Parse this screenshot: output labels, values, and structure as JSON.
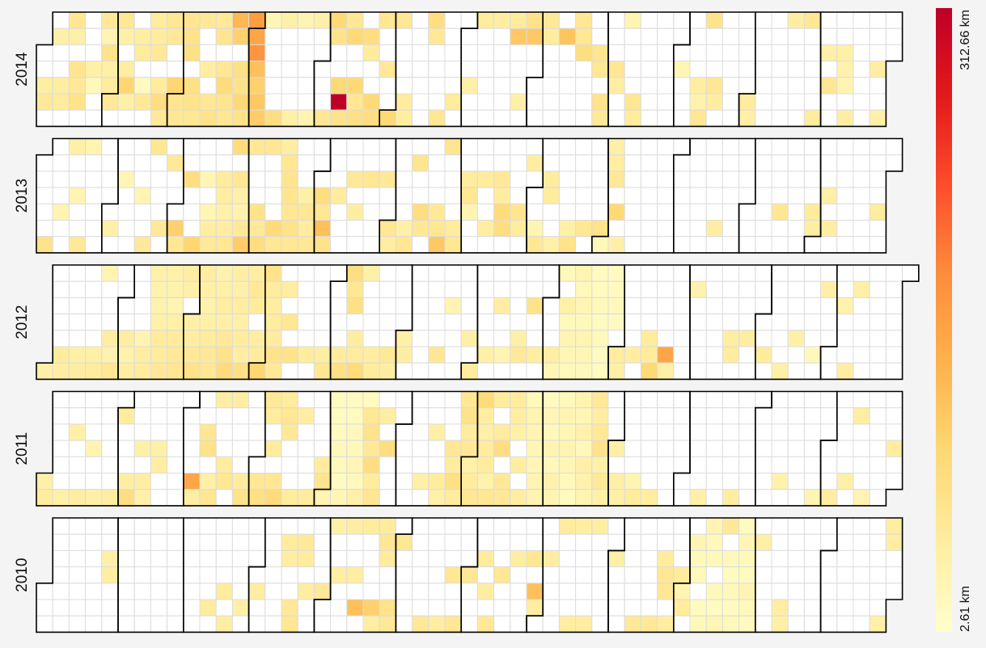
{
  "chart_data": {
    "type": "heatmap",
    "subtype": "calendar",
    "week_start": "monday",
    "unit": "km",
    "color_scale": {
      "min": 2.61,
      "max": 312.66,
      "min_label": "2.61 km",
      "max_label": "312.66 km",
      "colors": [
        "#ffffcc",
        "#ffeda0",
        "#fed976",
        "#feb24c",
        "#fd8d3c",
        "#fc4e2a",
        "#e31a1c",
        "#bd0026"
      ]
    },
    "empty_cell_color": "#ffffff",
    "grid_line_color": "#dcdcdc",
    "month_border_color": "#000000",
    "years": [
      {
        "year": 2014,
        "days": {
          "2014-01-07": 40,
          "2014-01-13": 60,
          "2014-01-14": 40,
          "2014-01-18": 70,
          "2014-01-23": 40,
          "2014-01-27": 55,
          "2014-01-28": 30,
          "2014-01-29": 70,
          "2014-02-01": 55,
          "2014-02-03": 60,
          "2014-02-04": 40,
          "2014-02-06": 45,
          "2014-02-07": 95,
          "2014-02-08": 40,
          "2014-01-03": 45,
          "2014-01-04": 55,
          "2014-01-11": 50,
          "2014-01-10": 45,
          "2014-01-16": 65,
          "2014-01-17": 55,
          "2014-01-24": 20,
          "2014-01-30": 40,
          "2014-01-31": 50,
          "2014-02-11": 45,
          "2014-02-12": 50,
          "2014-02-14": 15,
          "2014-02-15": 55,
          "2014-02-17": 50,
          "2014-02-18": 50,
          "2014-02-19": 55,
          "2014-02-21": 50,
          "2014-02-22": 80,
          "2014-02-23": 55,
          "2014-02-24": 60,
          "2014-02-25": 55,
          "2014-02-28": 95,
          "2014-03-01": 65,
          "2014-03-02": 60,
          "2014-03-03": 65,
          "2014-03-04": 70,
          "2014-03-05": 75,
          "2014-03-07": 75,
          "2014-03-08": 70,
          "2014-03-09": 60,
          "2014-03-10": 55,
          "2014-03-13": 45,
          "2014-03-15": 60,
          "2014-03-16": 70,
          "2014-03-17": 55,
          "2014-03-18": 65,
          "2014-03-20": 60,
          "2014-03-21": 85,
          "2014-03-22": 65,
          "2014-03-23": 60,
          "2014-03-24": 130,
          "2014-03-25": 100,
          "2014-03-27": 75,
          "2014-03-28": 70,
          "2014-03-29": 90,
          "2014-03-30": 70,
          "2014-03-31": 160,
          "2014-04-01": 150,
          "2014-04-02": 170,
          "2014-04-03": 120,
          "2014-04-04": 100,
          "2014-04-05": 110,
          "2014-04-06": 105,
          "2014-04-07": 25,
          "2014-04-13": 80,
          "2014-04-14": 40,
          "2014-04-20": 40,
          "2014-04-21": 30,
          "2014-04-27": 30,
          "2014-04-28": 40,
          "2014-05-04": 60,
          "2014-05-05": 90,
          "2014-05-06": 70,
          "2014-05-09": 90,
          "2014-05-10": 312.66,
          "2014-05-11": 70,
          "2014-05-12": 60,
          "2014-05-13": 90,
          "2014-05-16": 90,
          "2014-05-17": 60,
          "2014-05-18": 75,
          "2014-05-20": 80,
          "2014-05-21": 50,
          "2014-05-24": 90,
          "2014-05-25": 80,
          "2014-05-26": 60,
          "2014-05-29": 55,
          "2014-06-01": 90,
          "2014-06-02": 60,
          "2014-06-07": 50,
          "2014-06-08": 45,
          "2014-06-16": 80,
          "2014-06-17": 55,
          "2014-06-22": 60,
          "2014-06-28": 50,
          "2014-07-04": 40,
          "2014-07-07": 50,
          "2014-07-14": 45,
          "2014-07-21": 50,
          "2014-07-22": 110,
          "2014-07-26": 40,
          "2014-07-28": 70,
          "2014-07-29": 110,
          "2014-08-04": 55,
          "2014-08-05": 50,
          "2014-08-12": 115,
          "2014-08-18": 60,
          "2014-08-19": 60,
          "2014-08-20": 80,
          "2014-08-27": 65,
          "2014-08-28": 60,
          "2014-08-30": 70,
          "2014-08-31": 55,
          "2014-09-04": 60,
          "2014-09-05": 45,
          "2014-09-08": 30,
          "2014-09-13": 60,
          "2014-09-14": 50,
          "2014-10-02": 25,
          "2014-10-10": 45,
          "2014-10-11": 35,
          "2014-10-12": 60,
          "2014-10-13": 70,
          "2014-10-17": 60,
          "2014-10-18": 45,
          "2014-11-01": 50,
          "2014-11-02": 40,
          "2014-11-17": 45,
          "2014-11-24": 60,
          "2014-11-30": 50,
          "2014-12-03": 40,
          "2014-12-05": 60,
          "2014-12-10": 40,
          "2014-12-11": 35,
          "2014-12-12": 30,
          "2014-12-14": 45,
          "2014-12-25": 45,
          "2014-12-28": 40
        }
      },
      {
        "year": 2013,
        "days": {
          "2013-01-06": 70,
          "2013-01-11": 30,
          "2013-01-14": 40,
          "2013-01-17": 30,
          "2013-01-20": 55,
          "2013-01-21": 30,
          "2013-02-02": 40,
          "2013-02-06": 25,
          "2013-02-14": 30,
          "2013-02-17": 55,
          "2013-02-18": 60,
          "2013-02-23": 55,
          "2013-02-26": 55,
          "2013-03-02": 100,
          "2013-03-03": 60,
          "2013-03-06": 80,
          "2013-03-10": 95,
          "2013-03-13": 25,
          "2013-03-15": 25,
          "2013-03-16": 45,
          "2013-03-17": 55,
          "2013-03-20": 50,
          "2013-03-21": 45,
          "2013-03-22": 40,
          "2013-03-23": 45,
          "2013-03-24": 60,
          "2013-03-25": 85,
          "2013-03-27": 60,
          "2013-03-28": 40,
          "2013-03-29": 35,
          "2013-03-30": 55,
          "2013-03-31": 105,
          "2013-04-01": 60,
          "2013-04-05": 70,
          "2013-04-06": 55,
          "2013-04-07": 80,
          "2013-04-08": 60,
          "2013-04-13": 85,
          "2013-04-14": 60,
          "2013-04-15": 45,
          "2013-04-16": 60,
          "2013-04-17": 65,
          "2013-04-18": 65,
          "2013-04-19": 60,
          "2013-04-20": 70,
          "2013-04-21": 60,
          "2013-04-25": 40,
          "2013-04-26": 60,
          "2013-04-27": 50,
          "2013-04-28": 60,
          "2013-05-02": 80,
          "2013-05-03": 60,
          "2013-05-04": 120,
          "2013-05-05": 70,
          "2013-05-09": 50,
          "2013-05-15": 55,
          "2013-05-17": 45,
          "2013-05-22": 60,
          "2013-05-29": 55,
          "2013-06-01": 60,
          "2013-06-02": 45,
          "2013-06-08": 40,
          "2013-06-09": 60,
          "2013-06-11": 65,
          "2013-06-14": 80,
          "2013-06-15": 60,
          "2013-06-21": 55,
          "2013-06-22": 60,
          "2013-06-23": 110,
          "2013-06-24": 65,
          "2013-06-29": 50,
          "2013-06-30": 60,
          "2013-07-03": 50,
          "2013-07-04": 60,
          "2013-07-05": 30,
          "2013-07-10": 50,
          "2013-07-13": 45,
          "2013-07-17": 55,
          "2013-07-18": 45,
          "2013-07-19": 85,
          "2013-07-20": 80,
          "2013-07-26": 65,
          "2013-07-27": 50,
          "2013-07-30": 45,
          "2013-08-03": 30,
          "2013-08-04": 60,
          "2013-08-07": 50,
          "2013-08-08": 50,
          "2013-08-11": 40,
          "2013-08-17": 40,
          "2013-08-18": 70,
          "2013-08-24": 60,
          "2013-08-31": 70,
          "2013-09-01": 20,
          "2013-09-02": 40,
          "2013-09-03": 45,
          "2013-09-04": 55,
          "2013-09-06": 90,
          "2013-09-08": 40,
          "2013-10-19": 45,
          "2013-11-15": 60,
          "2013-11-29": 50,
          "2013-11-30": 45,
          "2013-12-05": 40,
          "2013-12-07": 45,
          "2013-12-27": 50
        }
      },
      {
        "year": 2012,
        "days": {
          "2012-01-01": 40,
          "2012-01-07": 50,
          "2012-01-08": 45,
          "2012-01-14": 40,
          "2012-01-15": 45,
          "2012-01-21": 40,
          "2012-01-22": 50,
          "2012-01-23": 30,
          "2012-01-27": 45,
          "2012-01-28": 35,
          "2012-01-29": 60,
          "2012-02-03": 45,
          "2012-02-04": 35,
          "2012-02-05": 45,
          "2012-02-10": 30,
          "2012-02-11": 45,
          "2012-02-12": 50,
          "2012-02-13": 40,
          "2012-02-14": 35,
          "2012-02-15": 35,
          "2012-02-16": 40,
          "2012-02-17": 50,
          "2012-02-18": 50,
          "2012-02-19": 55,
          "2012-02-20": 40,
          "2012-02-21": 35,
          "2012-02-22": 30,
          "2012-02-23": 40,
          "2012-02-24": 50,
          "2012-02-25": 55,
          "2012-02-26": 60,
          "2012-02-27": 45,
          "2012-02-28": 40,
          "2012-03-01": 40,
          "2012-03-02": 45,
          "2012-03-03": 55,
          "2012-03-04": 70,
          "2012-03-05": 45,
          "2012-03-06": 40,
          "2012-03-07": 35,
          "2012-03-08": 40,
          "2012-03-09": 50,
          "2012-03-10": 55,
          "2012-03-11": 60,
          "2012-03-12": 35,
          "2012-03-13": 40,
          "2012-03-14": 45,
          "2012-03-15": 40,
          "2012-03-16": 55,
          "2012-03-17": 70,
          "2012-03-18": 85,
          "2012-03-19": 45,
          "2012-03-20": 40,
          "2012-03-21": 45,
          "2012-03-22": 40,
          "2012-03-23": 50,
          "2012-03-24": 45,
          "2012-03-25": 75,
          "2012-03-26": 45,
          "2012-03-27": 55,
          "2012-03-28": 50,
          "2012-03-30": 45,
          "2012-03-31": 50,
          "2012-04-01": 95,
          "2012-04-02": 70,
          "2012-04-03": 50,
          "2012-04-04": 45,
          "2012-04-05": 50,
          "2012-04-06": 50,
          "2012-04-07": 70,
          "2012-04-08": 55,
          "2012-04-10": 45,
          "2012-04-12": 60,
          "2012-04-14": 70,
          "2012-04-21": 50,
          "2012-04-28": 45,
          "2012-04-29": 60,
          "2012-05-05": 50,
          "2012-05-06": 75,
          "2012-05-07": 80,
          "2012-05-08": 60,
          "2012-05-09": 75,
          "2012-05-11": 45,
          "2012-05-12": 50,
          "2012-05-13": 85,
          "2012-05-14": 40,
          "2012-05-19": 45,
          "2012-05-20": 50,
          "2012-05-26": 55,
          "2012-05-27": 45,
          "2012-06-01": 40,
          "2012-06-02": 45,
          "2012-06-16": 60,
          "2012-06-20": 30,
          "2012-06-29": 40,
          "2012-07-01": 50,
          "2012-07-07": 40,
          "2012-07-11": 45,
          "2012-07-14": 30,
          "2012-07-20": 40,
          "2012-07-21": 55,
          "2012-07-25": 70,
          "2012-07-28": 45,
          "2012-08-04": 45,
          "2012-08-05": 25,
          "2012-08-06": 20,
          "2012-08-08": 40,
          "2012-08-09": 20,
          "2012-08-10": 30,
          "2012-08-11": 25,
          "2012-08-12": 20,
          "2012-08-13": 30,
          "2012-08-14": 20,
          "2012-08-15": 25,
          "2012-08-16": 20,
          "2012-08-17": 30,
          "2012-08-18": 25,
          "2012-08-19": 20,
          "2012-08-20": 15,
          "2012-08-21": 15,
          "2012-08-22": 20,
          "2012-08-23": 15,
          "2012-08-24": 20,
          "2012-08-25": 15,
          "2012-08-26": 15,
          "2012-08-27": 15,
          "2012-08-28": 15,
          "2012-08-29": 20,
          "2012-08-30": 15,
          "2012-09-01": 50,
          "2012-09-02": 40,
          "2012-09-08": 45,
          "2012-09-14": 50,
          "2012-09-15": 50,
          "2012-09-16": 90,
          "2012-09-22": 150,
          "2012-09-23": 40,
          "2012-10-02": 35,
          "2012-10-19": 45,
          "2012-10-20": 50,
          "2012-10-26": 45,
          "2012-11-03": 50,
          "2012-11-11": 40,
          "2012-11-16": 40,
          "2012-11-24": 20,
          "2012-11-27": 40,
          "2012-12-05": 35,
          "2012-12-09": 45,
          "2012-12-11": 40
        }
      },
      {
        "year": 2011,
        "days": {
          "2011-01-01": 40,
          "2011-01-02": 50,
          "2011-01-09": 40,
          "2011-01-16": 45,
          "2011-01-23": 40,
          "2011-01-30": 45,
          "2011-01-12": 40,
          "2011-01-20": 30,
          "2011-02-01": 50,
          "2011-02-05": 45,
          "2011-02-06": 80,
          "2011-02-10": 40,
          "2011-02-12": 45,
          "2011-02-13": 40,
          "2011-02-17": 40,
          "2011-02-18": 45,
          "2011-03-05": 150,
          "2011-03-06": 45,
          "2011-03-09": 60,
          "2011-03-10": 70,
          "2011-03-12": 40,
          "2011-03-13": 60,
          "2011-03-14": 45,
          "2011-03-18": 50,
          "2011-03-19": 60,
          "2011-03-21": 45,
          "2011-03-26": 50,
          "2011-03-27": 70,
          "2011-04-02": 60,
          "2011-04-03": 75,
          "2011-04-04": 55,
          "2011-04-05": 50,
          "2011-04-07": 50,
          "2011-04-09": 60,
          "2011-04-10": 85,
          "2011-04-11": 50,
          "2011-04-12": 60,
          "2011-04-13": 55,
          "2011-04-17": 50,
          "2011-04-19": 45,
          "2011-04-24": 50,
          "2011-04-29": 50,
          "2011-04-30": 65,
          "2011-05-01": 30,
          "2011-05-02": 15,
          "2011-05-03": 15,
          "2011-05-04": 15,
          "2011-05-05": 20,
          "2011-05-06": 20,
          "2011-05-07": 15,
          "2011-05-08": 25,
          "2011-05-09": 15,
          "2011-05-10": 15,
          "2011-05-11": 20,
          "2011-05-12": 20,
          "2011-05-13": 25,
          "2011-05-14": 20,
          "2011-05-15": 40,
          "2011-05-16": 15,
          "2011-05-17": 60,
          "2011-05-18": 70,
          "2011-05-19": 55,
          "2011-05-20": 80,
          "2011-05-21": 50,
          "2011-05-22": 60,
          "2011-05-24": 45,
          "2011-05-26": 80,
          "2011-06-11": 40,
          "2011-06-15": 40,
          "2011-06-18": 50,
          "2011-06-19": 40,
          "2011-06-23": 60,
          "2011-06-24": 50,
          "2011-06-25": 75,
          "2011-06-26": 50,
          "2011-06-27": 60,
          "2011-06-28": 70,
          "2011-06-29": 50,
          "2011-06-30": 55,
          "2011-07-01": 40,
          "2011-07-02": 50,
          "2011-07-03": 60,
          "2011-07-04": 85,
          "2011-07-05": 45,
          "2011-07-06": 40,
          "2011-07-07": 50,
          "2011-07-08": 50,
          "2011-07-09": 35,
          "2011-07-10": 60,
          "2011-07-11": 50,
          "2011-07-13": 50,
          "2011-07-14": 80,
          "2011-07-16": 55,
          "2011-07-17": 55,
          "2011-07-18": 50,
          "2011-07-19": 45,
          "2011-07-20": 40,
          "2011-07-22": 45,
          "2011-07-24": 45,
          "2011-07-25": 20,
          "2011-07-26": 30,
          "2011-07-27": 30,
          "2011-07-28": 25,
          "2011-07-29": 25,
          "2011-07-30": 30,
          "2011-07-31": 30,
          "2011-08-01": 15,
          "2011-08-02": 25,
          "2011-08-03": 20,
          "2011-08-04": 30,
          "2011-08-05": 20,
          "2011-08-06": 35,
          "2011-08-07": 30,
          "2011-08-08": 20,
          "2011-08-09": 30,
          "2011-08-10": 25,
          "2011-08-11": 30,
          "2011-08-12": 25,
          "2011-08-13": 20,
          "2011-08-14": 15,
          "2011-08-15": 30,
          "2011-08-16": 25,
          "2011-08-17": 35,
          "2011-08-18": 20,
          "2011-08-19": 40,
          "2011-08-20": 35,
          "2011-08-21": 30,
          "2011-08-22": 55,
          "2011-08-23": 45,
          "2011-08-24": 55,
          "2011-08-25": 70,
          "2011-08-26": 40,
          "2011-08-27": 55,
          "2011-08-28": 40,
          "2011-09-01": 40,
          "2011-09-03": 40,
          "2011-09-04": 40,
          "2011-09-10": 30,
          "2011-09-11": 50,
          "2011-09-18": 45,
          "2011-10-09": 40,
          "2011-10-23": 45,
          "2011-11-12": 35,
          "2011-11-27": 30,
          "2011-12-04": 45,
          "2011-12-10": 40,
          "2011-12-13": 45,
          "2011-12-18": 30,
          "2011-12-29": 45
        }
      },
      {
        "year": 2010,
        "days": {
          "2010-01-27": 40,
          "2010-01-28": 45,
          "2010-03-13": 50,
          "2010-03-27": 40,
          "2010-03-19": 50,
          "2010-03-21": 45,
          "2010-04-02": 45,
          "2010-04-13": 50,
          "2010-04-14": 45,
          "2010-04-17": 55,
          "2010-04-18": 60,
          "2010-04-20": 55,
          "2010-04-21": 50,
          "2010-04-23": 45,
          "2010-04-30": 55,
          "2010-05-03": 40,
          "2010-05-06": 45,
          "2010-05-10": 45,
          "2010-05-13": 45,
          "2010-05-15": 120,
          "2010-05-17": 50,
          "2010-05-22": 100,
          "2010-05-23": 45,
          "2010-05-24": 50,
          "2010-05-25": 60,
          "2010-05-26": 50,
          "2010-05-29": 70,
          "2010-05-30": 55,
          "2010-06-01": 60,
          "2010-06-13": 55,
          "2010-06-20": 45,
          "2010-06-24": 60,
          "2010-06-27": 60,
          "2010-07-01": 60,
          "2010-07-07": 50,
          "2010-07-09": 45,
          "2010-07-11": 55,
          "2010-07-15": 60,
          "2010-07-21": 45,
          "2010-07-28": 60,
          "2010-07-30": 120,
          "2010-07-31": 45,
          "2010-08-04": 45,
          "2010-08-09": 50,
          "2010-08-15": 45,
          "2010-08-16": 45,
          "2010-08-22": 45,
          "2010-08-23": 45,
          "2010-09-01": 40,
          "2010-09-12": 55,
          "2010-09-19": 55,
          "2010-09-22": 50,
          "2010-09-23": 60,
          "2010-09-24": 60,
          "2010-09-26": 45,
          "2010-09-30": 50,
          "2010-10-01": 30,
          "2010-10-02": 50,
          "2010-10-05": 30,
          "2010-10-06": 20,
          "2010-10-07": 20,
          "2010-10-09": 15,
          "2010-10-10": 20,
          "2010-10-11": 30,
          "2010-10-12": 20,
          "2010-10-13": 20,
          "2010-10-15": 20,
          "2010-10-16": 15,
          "2010-10-17": 25,
          "2010-10-20": 20,
          "2010-10-21": 15,
          "2010-10-22": 20,
          "2010-10-23": 15,
          "2010-10-24": 20,
          "2010-10-25": 15,
          "2010-10-26": 25,
          "2010-10-27": 20,
          "2010-10-28": 15,
          "2010-10-29": 30,
          "2010-10-30": 20,
          "2010-10-31": 15,
          "2010-10-18": 55,
          "2010-11-02": 40,
          "2010-11-13": 45,
          "2010-11-14": 40,
          "2010-12-26": 40,
          "2010-12-27": 45,
          "2010-12-28": 45
        }
      }
    ]
  }
}
